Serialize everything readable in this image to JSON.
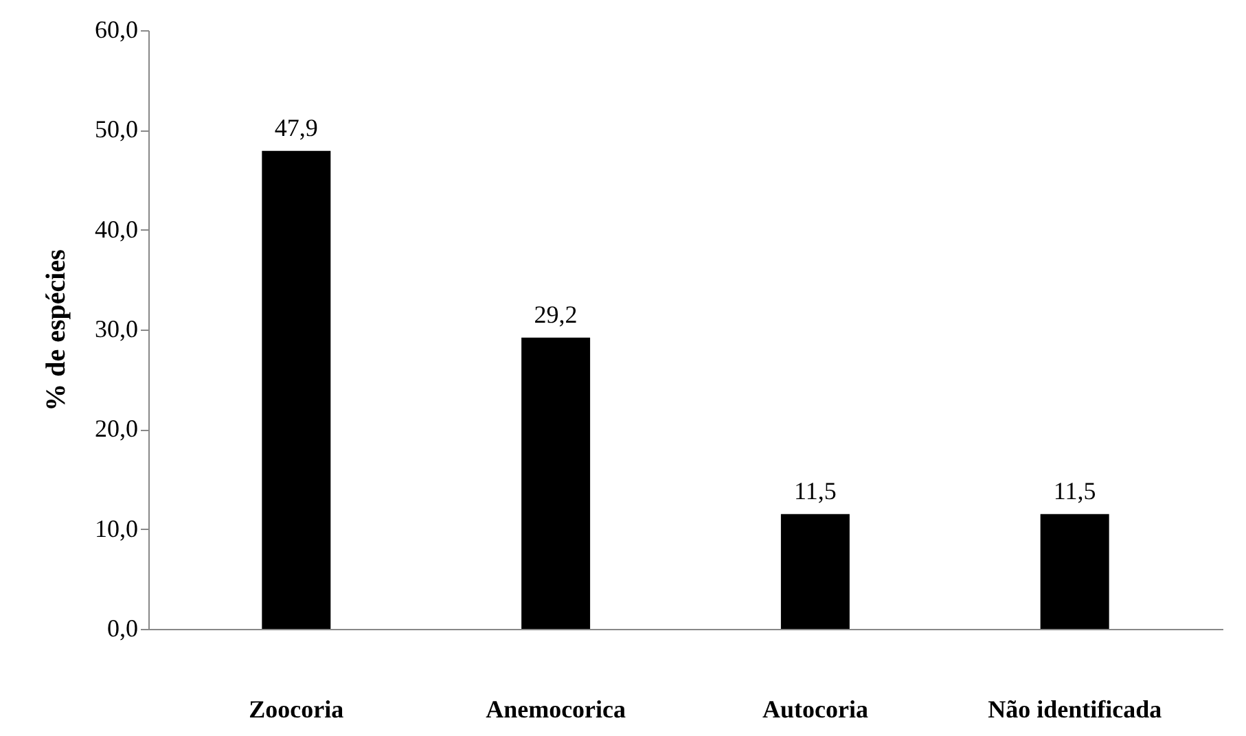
{
  "chart_data": {
    "type": "bar",
    "ylabel": "% de espécies",
    "categories": [
      "Zoocoria",
      "Anemocorica",
      "Autocoria",
      "Não identificada"
    ],
    "values": [
      47.9,
      29.2,
      11.5,
      11.5
    ],
    "color": "#000000",
    "value_labels": [
      "47,9",
      "29,2",
      "11,5",
      "11,5"
    ],
    "ylim": [
      0,
      60
    ],
    "yticks": [
      {
        "value": 0,
        "label": "0,0"
      },
      {
        "value": 10,
        "label": "10,0"
      },
      {
        "value": 20,
        "label": "20,0"
      },
      {
        "value": 30,
        "label": "30,0"
      },
      {
        "value": 40,
        "label": "40,0"
      },
      {
        "value": 50,
        "label": "50,0"
      },
      {
        "value": 60,
        "label": "60,0"
      }
    ],
    "grid": false
  }
}
